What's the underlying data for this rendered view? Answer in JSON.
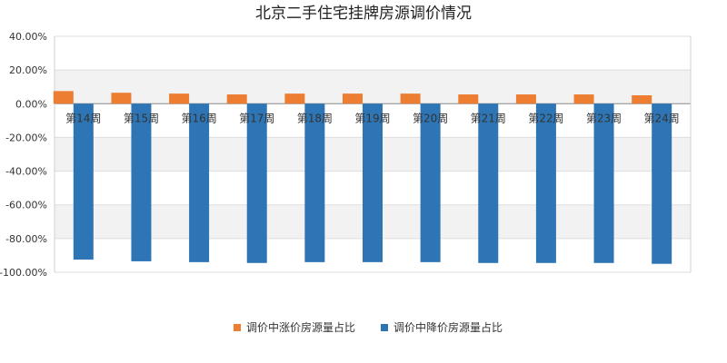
{
  "chart_data": {
    "type": "bar",
    "title": "北京二手住宅挂牌房源调价情况",
    "categories": [
      "第14周",
      "第15周",
      "第16周",
      "第17周",
      "第18周",
      "第19周",
      "第20周",
      "第21周",
      "第22周",
      "第23周",
      "第24周"
    ],
    "series": [
      {
        "name": "调价中涨价房源量占比",
        "color": "#ED7D31",
        "values": [
          7.5,
          6.5,
          6.0,
          5.5,
          6.0,
          6.0,
          6.0,
          5.5,
          5.5,
          5.5,
          5.0
        ]
      },
      {
        "name": "调价中降价房源量占比",
        "color": "#2E75B6",
        "values": [
          -92.5,
          -93.5,
          -94.0,
          -94.5,
          -94.0,
          -94.0,
          -94.0,
          -94.5,
          -94.5,
          -94.5,
          -95.0
        ]
      }
    ],
    "ylim": [
      -100,
      40
    ],
    "yticks": [
      "40.00%",
      "20.00%",
      "0.00%",
      "-20.00%",
      "-40.00%",
      "-60.00%",
      "-80.00%",
      "-100.00%"
    ],
    "ytick_values": [
      40,
      20,
      0,
      -20,
      -40,
      -60,
      -80,
      -100
    ],
    "legend_position": "bottom",
    "grid": true,
    "band_color": "#F2F2F2"
  }
}
